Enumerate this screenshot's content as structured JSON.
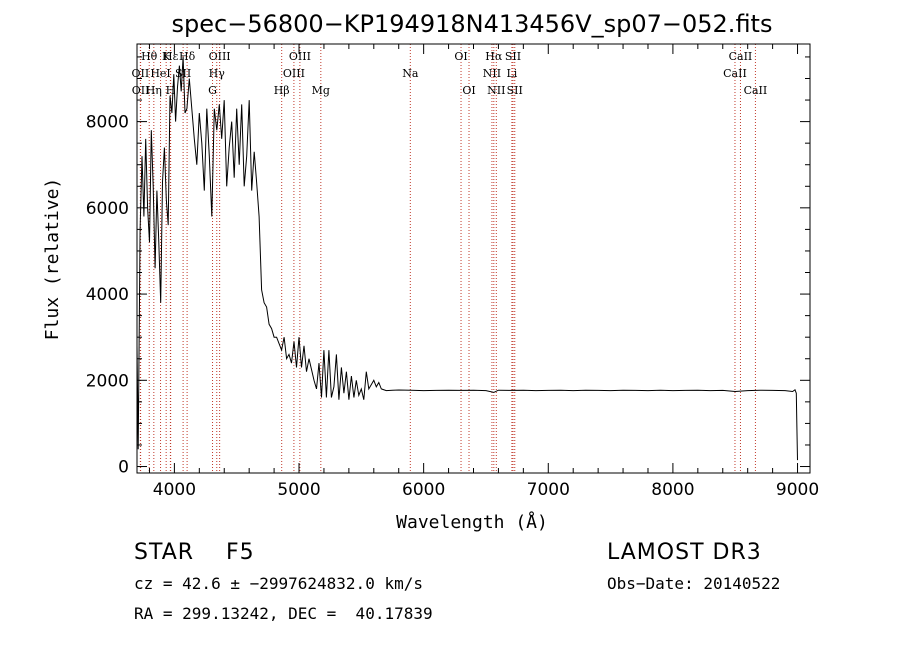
{
  "chart_data": {
    "type": "line",
    "title": "spec−56800−KP194918N413456V_sp07−052.fits",
    "xlabel": "Wavelength (Å)",
    "ylabel": "Flux (relative)",
    "xlim": [
      3700,
      9100
    ],
    "ylim": [
      -150,
      9800
    ],
    "xticks": [
      4000,
      5000,
      6000,
      7000,
      8000,
      9000
    ],
    "yticks": [
      0,
      2000,
      4000,
      6000,
      8000
    ],
    "series": [
      {
        "name": "spectrum",
        "x": [
          3700,
          3710,
          3725,
          3740,
          3755,
          3770,
          3785,
          3800,
          3815,
          3830,
          3845,
          3860,
          3875,
          3890,
          3905,
          3920,
          3935,
          3950,
          3965,
          3980,
          3995,
          4010,
          4025,
          4040,
          4055,
          4070,
          4085,
          4100,
          4120,
          4140,
          4160,
          4180,
          4200,
          4220,
          4240,
          4260,
          4280,
          4300,
          4320,
          4340,
          4360,
          4380,
          4400,
          4420,
          4440,
          4460,
          4480,
          4500,
          4520,
          4540,
          4560,
          4580,
          4600,
          4620,
          4640,
          4660,
          4680,
          4700,
          4720,
          4740,
          4760,
          4780,
          4800,
          4820,
          4840,
          4860,
          4880,
          4900,
          4920,
          4940,
          4960,
          4980,
          5000,
          5020,
          5040,
          5060,
          5080,
          5100,
          5120,
          5140,
          5160,
          5180,
          5200,
          5220,
          5240,
          5260,
          5280,
          5300,
          5320,
          5340,
          5360,
          5380,
          5400,
          5420,
          5440,
          5460,
          5480,
          5500,
          5520,
          5540,
          5560,
          5580,
          5600,
          5620,
          5640,
          5660,
          5700,
          5750,
          5800,
          5900,
          6000,
          6100,
          6200,
          6300,
          6400,
          6500,
          6563,
          6600,
          6700,
          6800,
          6900,
          7000,
          7100,
          7200,
          7300,
          7400,
          7500,
          7600,
          7700,
          7800,
          7900,
          8000,
          8100,
          8200,
          8300,
          8400,
          8500,
          8600,
          8700,
          8800,
          8900,
          8960,
          8980,
          8990,
          8995,
          9000
        ],
        "values": [
          2800,
          400,
          5500,
          7200,
          5800,
          7600,
          6000,
          5200,
          7800,
          6500,
          4600,
          6400,
          5200,
          3800,
          6600,
          7400,
          6200,
          5600,
          8600,
          8200,
          9100,
          8000,
          8800,
          9300,
          8700,
          9500,
          8200,
          8300,
          9000,
          8300,
          7600,
          7000,
          8200,
          7500,
          6400,
          8300,
          7200,
          5800,
          8300,
          7800,
          8400,
          7600,
          8500,
          6500,
          7400,
          8000,
          6700,
          8300,
          7000,
          8400,
          6500,
          7200,
          8500,
          6400,
          7300,
          6600,
          5800,
          4100,
          3800,
          3700,
          3300,
          3200,
          3000,
          3000,
          2850,
          2700,
          3000,
          2500,
          2600,
          2400,
          2900,
          2300,
          3000,
          2300,
          2800,
          2200,
          2500,
          2250,
          2000,
          1800,
          2400,
          1600,
          2700,
          1600,
          2700,
          1600,
          1850,
          2600,
          1550,
          2300,
          1700,
          2200,
          1550,
          2100,
          1600,
          2000,
          1650,
          1800,
          1550,
          2200,
          1800,
          1900,
          2000,
          1850,
          1950,
          1800,
          1760,
          1770,
          1775,
          1770,
          1760,
          1765,
          1770,
          1765,
          1770,
          1760,
          1720,
          1770,
          1765,
          1770,
          1760,
          1765,
          1770,
          1760,
          1770,
          1765,
          1760,
          1770,
          1765,
          1760,
          1770,
          1760,
          1765,
          1770,
          1760,
          1765,
          1740,
          1760,
          1770,
          1765,
          1760,
          1740,
          1780,
          1700,
          900,
          150
        ]
      }
    ],
    "lines": [
      {
        "name": "Hθ",
        "x": 3798,
        "row": 0
      },
      {
        "name": "OII",
        "x": 3727,
        "row": 1
      },
      {
        "name": "OII",
        "x": 3729,
        "row": 2
      },
      {
        "name": "HeI",
        "x": 3889,
        "row": 1
      },
      {
        "name": "Hη",
        "x": 3835,
        "row": 2
      },
      {
        "name": "K",
        "x": 3934,
        "row": 0
      },
      {
        "name": "Hε",
        "x": 3970,
        "row": 0
      },
      {
        "name": "H",
        "x": 3968,
        "row": 2
      },
      {
        "name": "Hδ",
        "x": 4102,
        "row": 0
      },
      {
        "name": "SII",
        "x": 4070,
        "row": 1
      },
      {
        "name": "OIII",
        "x": 4363,
        "row": 0
      },
      {
        "name": "Hγ",
        "x": 4340,
        "row": 1
      },
      {
        "name": "G",
        "x": 4306,
        "row": 2
      },
      {
        "name": "OIII",
        "x": 5007,
        "row": 0
      },
      {
        "name": "OIII",
        "x": 4959,
        "row": 1
      },
      {
        "name": "Hβ",
        "x": 4861,
        "row": 2
      },
      {
        "name": "Mg",
        "x": 5175,
        "row": 2
      },
      {
        "name": "Na",
        "x": 5893,
        "row": 1
      },
      {
        "name": "OI",
        "x": 6300,
        "row": 0
      },
      {
        "name": "OI",
        "x": 6364,
        "row": 2
      },
      {
        "name": "Hα",
        "x": 6563,
        "row": 0
      },
      {
        "name": "NII",
        "x": 6548,
        "row": 1
      },
      {
        "name": "NII",
        "x": 6583,
        "row": 2
      },
      {
        "name": "SII",
        "x": 6717,
        "row": 0
      },
      {
        "name": "Li",
        "x": 6708,
        "row": 1
      },
      {
        "name": "SII",
        "x": 6731,
        "row": 2
      },
      {
        "name": "CaII",
        "x": 8542,
        "row": 0
      },
      {
        "name": "CaII",
        "x": 8498,
        "row": 1
      },
      {
        "name": "CaII",
        "x": 8662,
        "row": 2
      }
    ]
  },
  "info": {
    "classification": "STAR    F5",
    "survey": "LAMOST DR3",
    "redshift": "cz = 42.6 ± −2997624832.0 km/s",
    "obs_date": "Obs−Date: 20140522",
    "coords": "RA = 299.13242, DEC =  40.17839"
  }
}
